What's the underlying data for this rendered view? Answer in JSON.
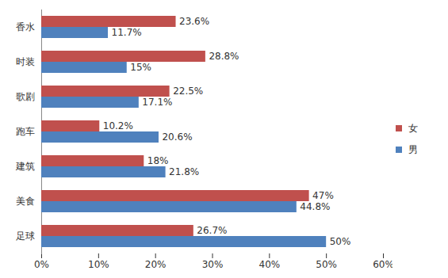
{
  "chart_data": {
    "type": "bar",
    "orientation": "horizontal",
    "categories": [
      "香水",
      "时装",
      "歌剧",
      "跑车",
      "建筑",
      "美食",
      "足球"
    ],
    "series": [
      {
        "name": "女",
        "color": "#c0504d",
        "values": [
          23.6,
          28.8,
          22.5,
          10.2,
          18,
          47,
          26.7
        ],
        "value_labels": [
          "23.6%",
          "28.8%",
          "22.5%",
          "10.2%",
          "18%",
          "47%",
          "26.7%"
        ]
      },
      {
        "name": "男",
        "color": "#4f81bd",
        "values": [
          11.7,
          15,
          17.1,
          20.6,
          21.8,
          44.8,
          50
        ],
        "value_labels": [
          "11.7%",
          "15%",
          "17.1%",
          "20.6%",
          "21.8%",
          "44.8%",
          "50%"
        ]
      }
    ],
    "xlim": [
      0,
      60
    ],
    "xticks": [
      {
        "value": 0,
        "label": "0%"
      },
      {
        "value": 10,
        "label": "10%"
      },
      {
        "value": 20,
        "label": "20%"
      },
      {
        "value": 30,
        "label": "30%"
      },
      {
        "value": 40,
        "label": "40%"
      },
      {
        "value": 50,
        "label": "50%"
      },
      {
        "value": 60,
        "label": "60%"
      }
    ],
    "grid": false,
    "data_labels": true,
    "legend": "right"
  }
}
